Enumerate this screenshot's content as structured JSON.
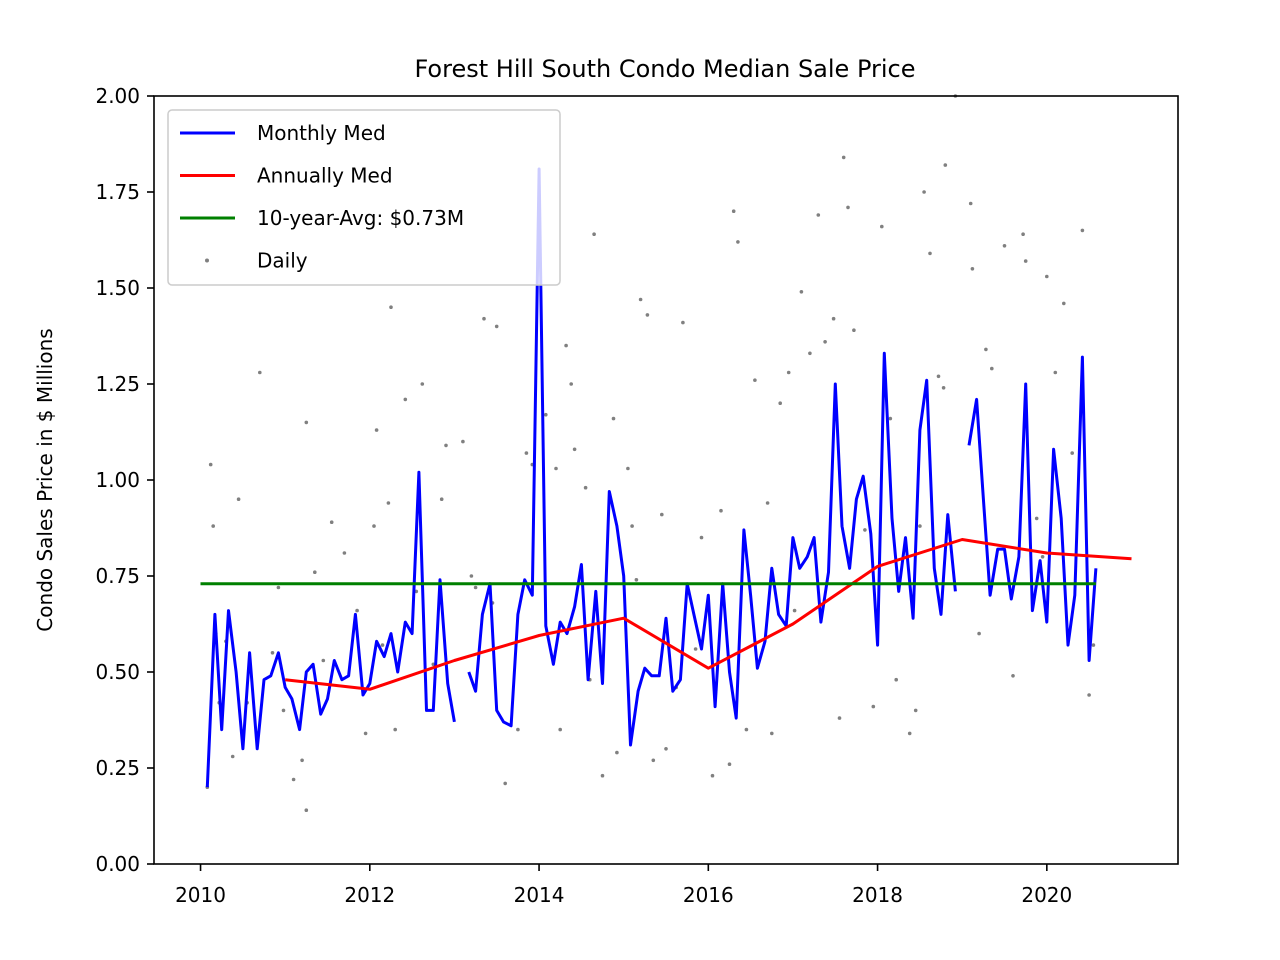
{
  "chart_data": {
    "type": "line",
    "title": "Forest Hill South Condo Median Sale Price",
    "xlabel": "",
    "ylabel": "Condo Sales Price in $ Millions",
    "xlim": [
      2009.45,
      2021.55
    ],
    "ylim": [
      0,
      2.0
    ],
    "x_ticks": [
      2010,
      2012,
      2014,
      2016,
      2018,
      2020
    ],
    "y_ticks": [
      "0.00",
      "0.25",
      "0.50",
      "0.75",
      "1.00",
      "1.25",
      "1.50",
      "1.75",
      "2.00"
    ],
    "grid": false,
    "legend_position": "top-left",
    "series": [
      {
        "name": "Monthly Med",
        "color": "#0000ff",
        "points": [
          [
            2010.08,
            0.2
          ],
          [
            2010.17,
            0.65
          ],
          [
            2010.25,
            0.35
          ],
          [
            2010.33,
            0.66
          ],
          [
            2010.42,
            0.5
          ],
          [
            2010.5,
            0.3
          ],
          [
            2010.58,
            0.55
          ],
          [
            2010.67,
            0.3
          ],
          [
            2010.75,
            0.48
          ],
          [
            2010.83,
            0.49
          ],
          [
            2010.92,
            0.55
          ],
          [
            2011.0,
            0.46
          ],
          [
            2011.08,
            0.43
          ],
          [
            2011.17,
            0.35
          ],
          [
            2011.25,
            0.5
          ],
          [
            2011.33,
            0.52
          ],
          [
            2011.42,
            0.39
          ],
          [
            2011.5,
            0.43
          ],
          [
            2011.58,
            0.53
          ],
          [
            2011.67,
            0.48
          ],
          [
            2011.75,
            0.49
          ],
          [
            2011.83,
            0.65
          ],
          [
            2011.92,
            0.44
          ],
          [
            2012.0,
            0.47
          ],
          [
            2012.08,
            0.58
          ],
          [
            2012.17,
            0.54
          ],
          [
            2012.25,
            0.6
          ],
          [
            2012.33,
            0.5
          ],
          [
            2012.42,
            0.63
          ],
          [
            2012.5,
            0.6
          ],
          [
            2012.58,
            1.02
          ],
          [
            2012.67,
            0.4
          ],
          [
            2012.75,
            0.4
          ],
          [
            2012.83,
            0.74
          ],
          [
            2012.92,
            0.47
          ],
          [
            2013.0,
            0.37
          ],
          null,
          [
            2013.17,
            0.5
          ],
          [
            2013.25,
            0.45
          ],
          [
            2013.33,
            0.65
          ],
          [
            2013.42,
            0.73
          ],
          [
            2013.5,
            0.4
          ],
          [
            2013.58,
            0.37
          ],
          [
            2013.67,
            0.36
          ],
          [
            2013.75,
            0.65
          ],
          [
            2013.83,
            0.74
          ],
          [
            2013.92,
            0.7
          ],
          [
            2014.0,
            1.81
          ],
          [
            2014.08,
            0.62
          ],
          [
            2014.17,
            0.52
          ],
          [
            2014.25,
            0.63
          ],
          [
            2014.33,
            0.6
          ],
          [
            2014.42,
            0.67
          ],
          [
            2014.5,
            0.78
          ],
          [
            2014.58,
            0.48
          ],
          [
            2014.67,
            0.71
          ],
          [
            2014.75,
            0.47
          ],
          [
            2014.83,
            0.97
          ],
          [
            2014.92,
            0.88
          ],
          [
            2015.0,
            0.75
          ],
          [
            2015.08,
            0.31
          ],
          [
            2015.17,
            0.45
          ],
          [
            2015.25,
            0.51
          ],
          [
            2015.33,
            0.49
          ],
          [
            2015.42,
            0.49
          ],
          [
            2015.5,
            0.64
          ],
          [
            2015.58,
            0.45
          ],
          [
            2015.67,
            0.48
          ],
          [
            2015.75,
            0.73
          ],
          [
            2015.83,
            0.65
          ],
          [
            2015.92,
            0.56
          ],
          [
            2016.0,
            0.7
          ],
          [
            2016.08,
            0.41
          ],
          [
            2016.17,
            0.73
          ],
          [
            2016.25,
            0.5
          ],
          [
            2016.33,
            0.38
          ],
          [
            2016.42,
            0.87
          ],
          [
            2016.5,
            0.7
          ],
          [
            2016.58,
            0.51
          ],
          [
            2016.67,
            0.58
          ],
          [
            2016.75,
            0.77
          ],
          [
            2016.83,
            0.65
          ],
          [
            2016.92,
            0.62
          ],
          [
            2017.0,
            0.85
          ],
          [
            2017.08,
            0.77
          ],
          [
            2017.17,
            0.8
          ],
          [
            2017.25,
            0.85
          ],
          [
            2017.33,
            0.63
          ],
          [
            2017.42,
            0.76
          ],
          [
            2017.5,
            1.25
          ],
          [
            2017.58,
            0.88
          ],
          [
            2017.67,
            0.77
          ],
          [
            2017.75,
            0.95
          ],
          [
            2017.83,
            1.01
          ],
          [
            2017.92,
            0.86
          ],
          [
            2018.0,
            0.57
          ],
          [
            2018.08,
            1.33
          ],
          [
            2018.17,
            0.9
          ],
          [
            2018.25,
            0.71
          ],
          [
            2018.33,
            0.85
          ],
          [
            2018.42,
            0.64
          ],
          [
            2018.5,
            1.13
          ],
          [
            2018.58,
            1.26
          ],
          [
            2018.67,
            0.77
          ],
          [
            2018.75,
            0.65
          ],
          [
            2018.83,
            0.91
          ],
          [
            2018.92,
            0.71
          ],
          null,
          [
            2019.08,
            1.09
          ],
          [
            2019.17,
            1.21
          ],
          [
            2019.25,
            0.95
          ],
          [
            2019.33,
            0.7
          ],
          [
            2019.42,
            0.82
          ],
          [
            2019.5,
            0.82
          ],
          [
            2019.58,
            0.69
          ],
          [
            2019.67,
            0.8
          ],
          [
            2019.75,
            1.25
          ],
          [
            2019.83,
            0.66
          ],
          [
            2019.92,
            0.79
          ],
          [
            2020.0,
            0.63
          ],
          [
            2020.08,
            1.08
          ],
          [
            2020.17,
            0.9
          ],
          [
            2020.25,
            0.57
          ],
          [
            2020.33,
            0.7
          ],
          [
            2020.42,
            1.32
          ],
          [
            2020.5,
            0.53
          ],
          [
            2020.58,
            0.77
          ]
        ]
      },
      {
        "name": "Annually Med",
        "color": "#ff0000",
        "points": [
          [
            2011.0,
            0.48
          ],
          [
            2012.0,
            0.455
          ],
          [
            2013.0,
            0.53
          ],
          [
            2014.0,
            0.595
          ],
          [
            2015.0,
            0.64
          ],
          [
            2016.0,
            0.51
          ],
          [
            2017.0,
            0.625
          ],
          [
            2018.0,
            0.775
          ],
          [
            2019.0,
            0.845
          ],
          [
            2020.0,
            0.81
          ],
          [
            2021.0,
            0.795
          ]
        ]
      },
      {
        "name": "10-year-Avg: $0.73M",
        "color": "#008000",
        "points": [
          [
            2010.0,
            0.73
          ],
          [
            2020.58,
            0.73
          ]
        ]
      },
      {
        "name": "Daily",
        "color": "#808080",
        "type": "scatter",
        "points": [
          [
            2010.08,
            0.2
          ],
          [
            2010.12,
            1.04
          ],
          [
            2010.15,
            0.88
          ],
          [
            2010.18,
            0.6
          ],
          [
            2010.22,
            0.42
          ],
          [
            2010.3,
            0.58
          ],
          [
            2010.38,
            0.28
          ],
          [
            2010.45,
            0.95
          ],
          [
            2010.55,
            0.42
          ],
          [
            2010.7,
            1.28
          ],
          [
            2010.85,
            0.55
          ],
          [
            2010.92,
            0.72
          ],
          [
            2010.98,
            0.4
          ],
          [
            2011.1,
            0.22
          ],
          [
            2011.2,
            0.27
          ],
          [
            2011.25,
            1.15
          ],
          [
            2011.35,
            0.76
          ],
          [
            2011.45,
            0.53
          ],
          [
            2011.55,
            0.89
          ],
          [
            2011.7,
            0.81
          ],
          [
            2011.85,
            0.66
          ],
          [
            2011.95,
            0.34
          ],
          [
            2011.25,
            0.14
          ],
          [
            2012.05,
            0.88
          ],
          [
            2012.08,
            1.13
          ],
          [
            2012.15,
            0.57
          ],
          [
            2012.22,
            0.94
          ],
          [
            2012.25,
            1.45
          ],
          [
            2012.3,
            0.35
          ],
          [
            2012.42,
            1.21
          ],
          [
            2012.55,
            0.71
          ],
          [
            2012.62,
            1.25
          ],
          [
            2012.75,
            0.52
          ],
          [
            2012.85,
            0.95
          ],
          [
            2012.9,
            1.09
          ],
          [
            2013.1,
            1.1
          ],
          [
            2013.2,
            0.75
          ],
          [
            2013.25,
            0.72
          ],
          [
            2013.35,
            1.42
          ],
          [
            2013.45,
            0.68
          ],
          [
            2013.5,
            1.4
          ],
          [
            2013.6,
            0.21
          ],
          [
            2013.75,
            0.35
          ],
          [
            2013.85,
            1.07
          ],
          [
            2013.92,
            1.04
          ],
          [
            2014.0,
            1.56
          ],
          [
            2014.08,
            1.17
          ],
          [
            2014.2,
            1.03
          ],
          [
            2014.25,
            0.35
          ],
          [
            2014.32,
            1.35
          ],
          [
            2014.38,
            1.25
          ],
          [
            2014.42,
            1.08
          ],
          [
            2014.55,
            0.98
          ],
          [
            2014.6,
            0.48
          ],
          [
            2014.65,
            1.64
          ],
          [
            2014.75,
            0.23
          ],
          [
            2014.88,
            1.16
          ],
          [
            2014.92,
            0.29
          ],
          [
            2015.05,
            1.03
          ],
          [
            2015.1,
            0.88
          ],
          [
            2015.15,
            0.74
          ],
          [
            2015.2,
            1.47
          ],
          [
            2015.28,
            1.43
          ],
          [
            2015.35,
            0.27
          ],
          [
            2015.45,
            0.91
          ],
          [
            2015.5,
            0.3
          ],
          [
            2015.62,
            0.46
          ],
          [
            2015.7,
            1.41
          ],
          [
            2015.85,
            0.56
          ],
          [
            2015.92,
            0.85
          ],
          [
            2016.05,
            0.23
          ],
          [
            2016.15,
            0.92
          ],
          [
            2016.25,
            0.26
          ],
          [
            2016.3,
            1.7
          ],
          [
            2016.35,
            1.62
          ],
          [
            2016.45,
            0.35
          ],
          [
            2016.55,
            1.26
          ],
          [
            2016.7,
            0.94
          ],
          [
            2016.75,
            0.34
          ],
          [
            2016.85,
            1.2
          ],
          [
            2016.95,
            1.28
          ],
          [
            2017.02,
            0.66
          ],
          [
            2017.1,
            1.49
          ],
          [
            2017.2,
            1.33
          ],
          [
            2017.3,
            1.69
          ],
          [
            2017.38,
            1.36
          ],
          [
            2017.48,
            1.42
          ],
          [
            2017.55,
            0.38
          ],
          [
            2017.6,
            1.84
          ],
          [
            2017.65,
            1.71
          ],
          [
            2017.72,
            1.39
          ],
          [
            2017.85,
            0.87
          ],
          [
            2017.95,
            0.41
          ],
          [
            2018.05,
            1.66
          ],
          [
            2018.15,
            1.16
          ],
          [
            2018.22,
            0.48
          ],
          [
            2018.38,
            0.34
          ],
          [
            2018.45,
            0.4
          ],
          [
            2018.5,
            0.88
          ],
          [
            2018.55,
            1.75
          ],
          [
            2018.62,
            1.59
          ],
          [
            2018.72,
            1.27
          ],
          [
            2018.78,
            1.24
          ],
          [
            2018.8,
            1.82
          ],
          [
            2018.92,
            2.0
          ],
          [
            2019.1,
            1.72
          ],
          [
            2019.12,
            1.55
          ],
          [
            2019.2,
            0.6
          ],
          [
            2019.28,
            1.34
          ],
          [
            2019.35,
            1.29
          ],
          [
            2019.5,
            1.61
          ],
          [
            2019.6,
            0.49
          ],
          [
            2019.72,
            1.64
          ],
          [
            2019.75,
            1.57
          ],
          [
            2019.88,
            0.9
          ],
          [
            2019.95,
            0.8
          ],
          [
            2020.0,
            1.53
          ],
          [
            2020.1,
            1.28
          ],
          [
            2020.2,
            1.46
          ],
          [
            2020.3,
            1.07
          ],
          [
            2020.42,
            1.65
          ],
          [
            2020.5,
            0.44
          ],
          [
            2020.55,
            0.57
          ]
        ]
      }
    ]
  },
  "legend": {
    "items": [
      {
        "label": "Monthly Med",
        "color": "#0000ff",
        "kind": "line"
      },
      {
        "label": "Annually Med",
        "color": "#ff0000",
        "kind": "line"
      },
      {
        "label": "10-year-Avg: $0.73M",
        "color": "#008000",
        "kind": "line"
      },
      {
        "label": "Daily",
        "color": "#808080",
        "kind": "marker"
      }
    ]
  }
}
